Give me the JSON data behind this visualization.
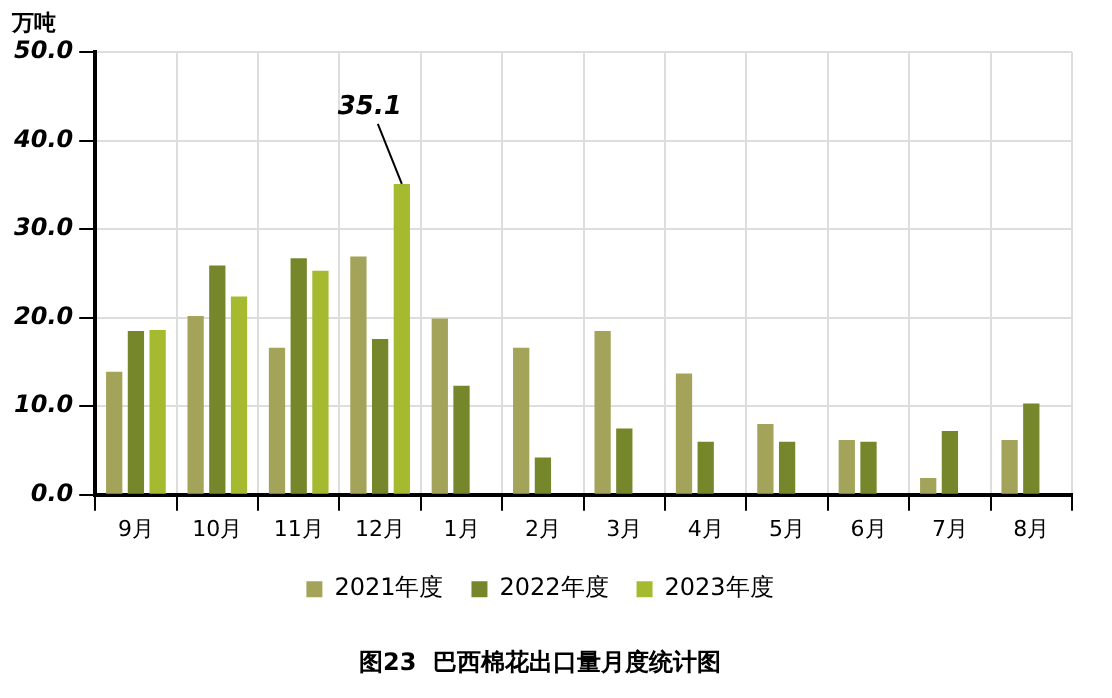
{
  "chart_data": {
    "type": "bar",
    "title": "图23  巴西棉花出口量月度统计图",
    "ylabel": "万吨",
    "categories": [
      "9月",
      "10月",
      "11月",
      "12月",
      "1月",
      "2月",
      "3月",
      "4月",
      "5月",
      "6月",
      "7月",
      "8月"
    ],
    "series": [
      {
        "name": "2021年度",
        "color": "#a3a35a",
        "values": [
          13.9,
          20.2,
          16.6,
          26.9,
          19.9,
          16.6,
          18.5,
          13.7,
          8.0,
          6.2,
          1.9,
          6.2
        ]
      },
      {
        "name": "2022年度",
        "color": "#76862a",
        "values": [
          18.5,
          25.9,
          26.7,
          17.6,
          12.3,
          4.2,
          7.5,
          6.0,
          6.0,
          6.0,
          7.2,
          10.3
        ]
      },
      {
        "name": "2023年度",
        "color": "#a6ba30",
        "values": [
          18.6,
          22.4,
          25.3,
          35.1,
          null,
          null,
          null,
          null,
          null,
          null,
          null,
          null
        ],
        "value_labels": [
          null,
          null,
          null,
          "35.1",
          null,
          null,
          null,
          null,
          null,
          null,
          null,
          null
        ]
      }
    ],
    "ylim": [
      0,
      50
    ],
    "yticks": [
      {
        "value": 0,
        "label": "0.0"
      },
      {
        "value": 10,
        "label": "10.0"
      },
      {
        "value": 20,
        "label": "20.0"
      },
      {
        "value": 30,
        "label": "30.0"
      },
      {
        "value": 40,
        "label": "40.0"
      },
      {
        "value": 50,
        "label": "50.0"
      }
    ],
    "grid": true,
    "legend": "bottom"
  }
}
